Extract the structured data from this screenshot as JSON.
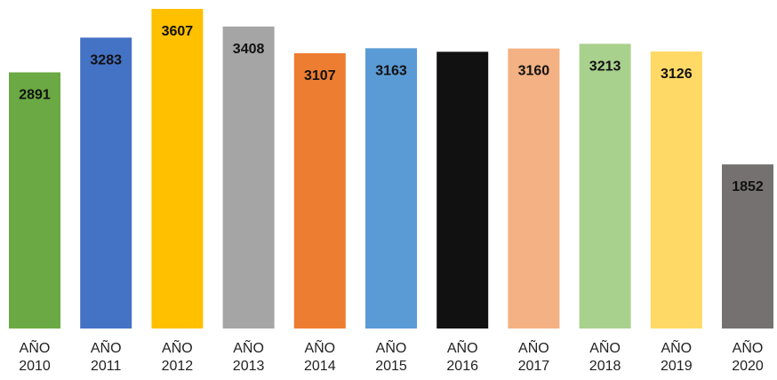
{
  "chart_data": {
    "type": "bar",
    "categories": [
      "AÑO 2010",
      "AÑO 2011",
      "AÑO 2012",
      "AÑO 2013",
      "AÑO 2014",
      "AÑO 2015",
      "AÑO 2016",
      "AÑO 2017",
      "AÑO 2018",
      "AÑO 2019",
      "AÑO 2020"
    ],
    "values": [
      2891,
      3283,
      3607,
      3408,
      3107,
      3163,
      3123,
      3160,
      3213,
      3126,
      1852
    ],
    "colors": [
      "#6aa943",
      "#4472c4",
      "#ffc000",
      "#a5a5a5",
      "#ed7d31",
      "#5b9bd5",
      "#111111",
      "#f4b183",
      "#a9d18e",
      "#ffd966",
      "#767171"
    ]
  }
}
